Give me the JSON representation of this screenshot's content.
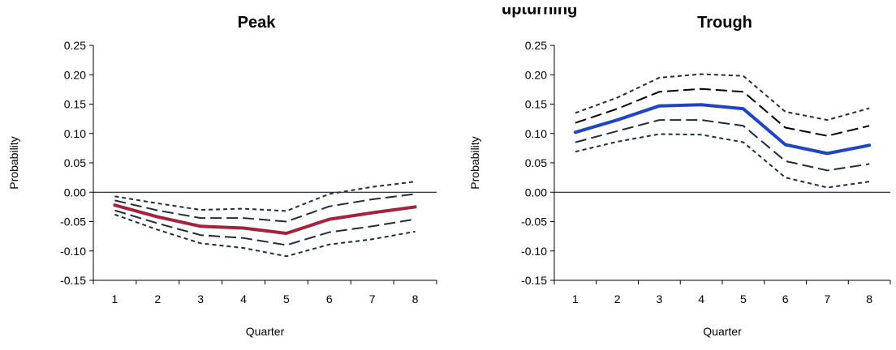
{
  "header": {
    "partial_title": "upturning"
  },
  "chart_data": [
    {
      "type": "line",
      "title": "Peak",
      "xlabel": "Quarter",
      "ylabel": "Probability",
      "categories": [
        "1",
        "2",
        "3",
        "4",
        "5",
        "6",
        "7",
        "8"
      ],
      "x": [
        1,
        2,
        3,
        4,
        5,
        6,
        7,
        8
      ],
      "yticks": [
        "0.25",
        "0.20",
        "0.15",
        "0.10",
        "0.05",
        "0.00",
        "-0.05",
        "-0.10",
        "-0.15"
      ],
      "ylim": [
        -0.15,
        0.25
      ],
      "grid": false,
      "zero_line": true,
      "series": [
        {
          "style": "dotted",
          "color": "#1f2d3d",
          "values": [
            -0.007,
            -0.019,
            -0.03,
            -0.028,
            -0.032,
            -0.003,
            0.009,
            0.018
          ]
        },
        {
          "style": "dashed",
          "color": "#1f2d3d",
          "values": [
            -0.014,
            -0.031,
            -0.044,
            -0.044,
            -0.05,
            -0.024,
            -0.012,
            -0.003
          ]
        },
        {
          "style": "solid",
          "color": "#a5213c",
          "values": [
            -0.022,
            -0.042,
            -0.058,
            -0.061,
            -0.07,
            -0.046,
            -0.035,
            -0.025
          ]
        },
        {
          "style": "dashed",
          "color": "#1f2d3d",
          "values": [
            -0.031,
            -0.053,
            -0.073,
            -0.078,
            -0.09,
            -0.068,
            -0.058,
            -0.046
          ]
        },
        {
          "style": "dotted",
          "color": "#1f2d3d",
          "values": [
            -0.038,
            -0.064,
            -0.087,
            -0.095,
            -0.109,
            -0.089,
            -0.08,
            -0.067
          ]
        }
      ]
    },
    {
      "type": "line",
      "title": "Trough",
      "xlabel": "Quarter",
      "ylabel": "Probability",
      "categories": [
        "1",
        "2",
        "3",
        "4",
        "5",
        "6",
        "7",
        "8"
      ],
      "x": [
        1,
        2,
        3,
        4,
        5,
        6,
        7,
        8
      ],
      "yticks": [
        "0.25",
        "0.20",
        "0.15",
        "0.10",
        "0.05",
        "0.00",
        "-0.05",
        "-0.10",
        "-0.15"
      ],
      "ylim": [
        -0.15,
        0.25
      ],
      "grid": false,
      "zero_line": true,
      "series": [
        {
          "style": "dotted",
          "color": "#1f2d3d",
          "values": [
            0.135,
            0.161,
            0.195,
            0.201,
            0.198,
            0.137,
            0.123,
            0.143
          ]
        },
        {
          "style": "dashed",
          "color": "#000000",
          "values": [
            0.118,
            0.142,
            0.171,
            0.176,
            0.171,
            0.11,
            0.096,
            0.113
          ]
        },
        {
          "style": "solid",
          "color": "#1f45c4",
          "values": [
            0.102,
            0.123,
            0.147,
            0.149,
            0.142,
            0.081,
            0.066,
            0.08
          ]
        },
        {
          "style": "dashed",
          "color": "#1f2d3d",
          "values": [
            0.085,
            0.104,
            0.123,
            0.123,
            0.113,
            0.053,
            0.037,
            0.048
          ]
        },
        {
          "style": "dotted",
          "color": "#1f2d3d",
          "values": [
            0.069,
            0.086,
            0.099,
            0.098,
            0.085,
            0.025,
            0.008,
            0.018
          ]
        }
      ]
    }
  ]
}
